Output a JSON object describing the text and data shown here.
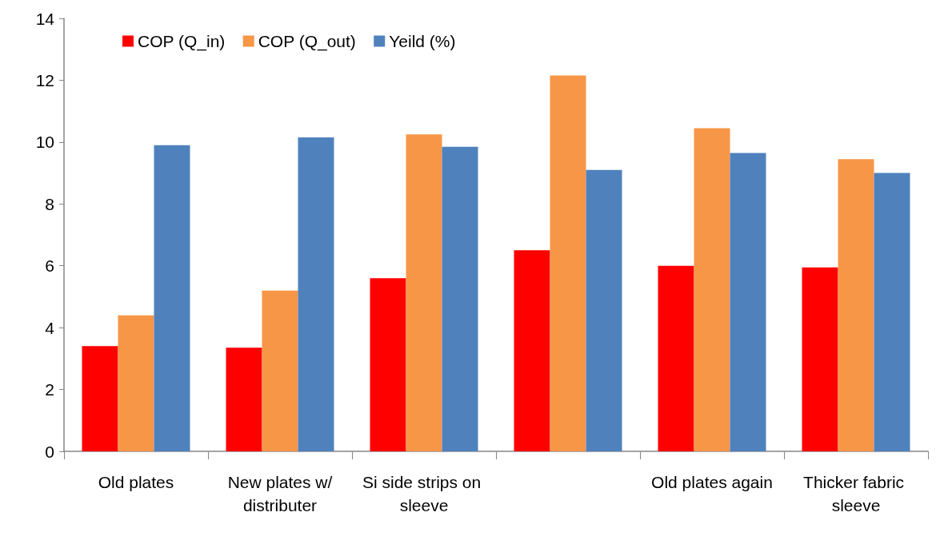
{
  "chart_data": {
    "type": "bar",
    "categories": [
      "Old plates",
      "New plates w/distributer",
      "Si side strips on sleeve",
      null,
      "Old plates again",
      "Thicker fabric sleeve"
    ],
    "series": [
      {
        "name": "COP (Q_in)",
        "color": "#ff0000",
        "values": [
          3.4,
          3.35,
          5.6,
          6.5,
          6.0,
          5.95
        ]
      },
      {
        "name": "COP (Q_out)",
        "color": "#f79646",
        "values": [
          4.4,
          5.2,
          10.25,
          12.15,
          10.45,
          9.45
        ]
      },
      {
        "name": "Yeild (%)",
        "color": "#4f81bd",
        "values": [
          9.9,
          10.15,
          9.85,
          9.1,
          9.65,
          9.0
        ]
      }
    ],
    "ylim": [
      0,
      14
    ],
    "yticks": [
      0,
      2,
      4,
      6,
      8,
      10,
      12,
      14
    ],
    "grid": false,
    "legend": "top left"
  }
}
